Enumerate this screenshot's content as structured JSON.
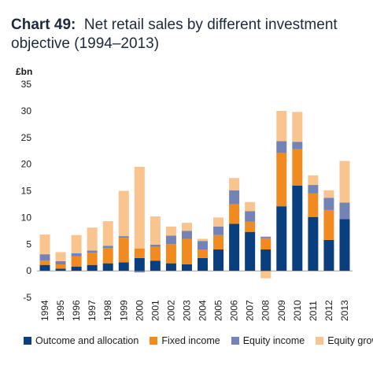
{
  "chart_data": {
    "type": "bar",
    "stacked": true,
    "title_num": "Chart 49:",
    "title_text": "Net retail sales by different investment objective (1994–2013)",
    "ylabel": "£bn",
    "xlabel": "",
    "ylim": [
      -5,
      35
    ],
    "yticks": [
      -5,
      0,
      5,
      10,
      15,
      20,
      25,
      30,
      35
    ],
    "grid": false,
    "legend_position": "bottom",
    "categories": [
      "1994",
      "1995",
      "1996",
      "1997",
      "1998",
      "1999",
      "2000",
      "2001",
      "2002",
      "2003",
      "2004",
      "2005",
      "2006",
      "2007",
      "2008",
      "2009",
      "2010",
      "2011",
      "2012",
      "2013"
    ],
    "series": [
      {
        "name": "Outcome and allocation",
        "color": "#0a3f7f",
        "values": [
          1.1,
          0.4,
          0.8,
          1.1,
          1.4,
          1.6,
          2.4,
          1.9,
          1.4,
          1.2,
          2.4,
          4.0,
          8.8,
          7.3,
          4.0,
          12.1,
          16.0,
          10.1,
          5.8,
          9.7
        ]
      },
      {
        "name": "Fixed income",
        "color": "#f18a1f",
        "values": [
          0.8,
          0.8,
          1.9,
          2.3,
          2.9,
          4.6,
          1.8,
          2.6,
          3.6,
          4.8,
          1.6,
          2.7,
          3.7,
          1.9,
          2.1,
          10.0,
          6.8,
          4.4,
          5.6,
          0.0
        ]
      },
      {
        "name": "Equity income",
        "color": "#7383b5",
        "values": [
          1.2,
          0.6,
          0.6,
          0.4,
          0.4,
          0.3,
          -0.3,
          0.4,
          1.6,
          1.5,
          1.6,
          1.6,
          2.6,
          2.0,
          0.3,
          2.2,
          1.4,
          1.6,
          2.3,
          3.1
        ]
      },
      {
        "name": "Equity growth",
        "color": "#f9c48e",
        "values": [
          3.7,
          1.7,
          3.4,
          4.3,
          4.6,
          8.5,
          15.3,
          5.3,
          1.7,
          1.5,
          0.4,
          1.7,
          2.3,
          1.7,
          -1.4,
          5.7,
          5.6,
          1.8,
          1.4,
          7.8
        ]
      }
    ]
  }
}
